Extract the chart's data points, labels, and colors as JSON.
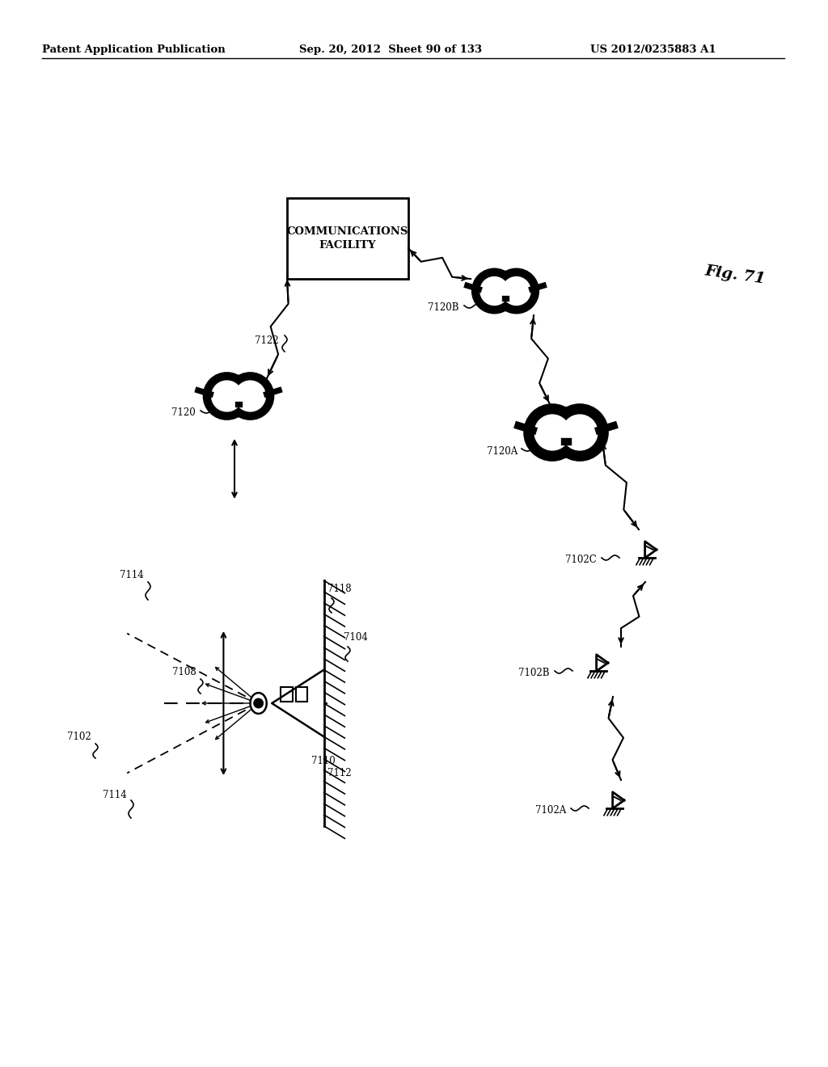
{
  "bg_color": "#ffffff",
  "header_text": "Patent Application Publication",
  "header_date": "Sep. 20, 2012  Sheet 90 of 133",
  "header_patent": "US 2012/0235883 A1",
  "fig_label": "Fig. 71",
  "box_label": "COMMUNICATIONS\nFACILITY"
}
